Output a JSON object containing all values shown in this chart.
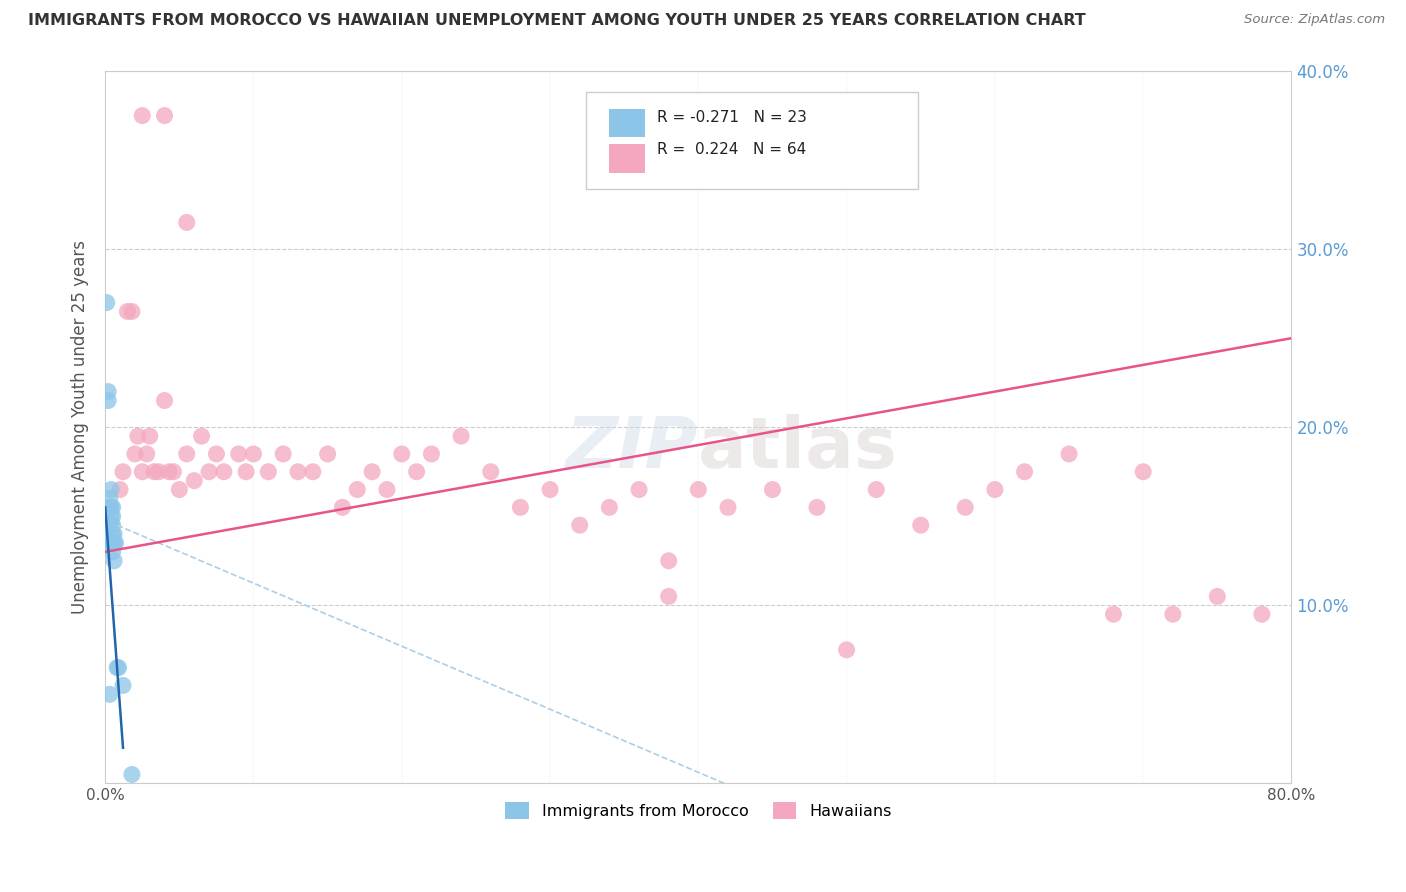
{
  "title": "IMMIGRANTS FROM MOROCCO VS HAWAIIAN UNEMPLOYMENT AMONG YOUTH UNDER 25 YEARS CORRELATION CHART",
  "source": "Source: ZipAtlas.com",
  "ylabel": "Unemployment Among Youth under 25 years",
  "xlim": [
    0,
    0.8
  ],
  "ylim": [
    0,
    0.4
  ],
  "yticks": [
    0.0,
    0.1,
    0.2,
    0.3,
    0.4
  ],
  "xticks": [
    0.0,
    0.8
  ],
  "ytick_labels_right": [
    "",
    "10.0%",
    "20.0%",
    "30.0%",
    "40.0%"
  ],
  "background_color": "#ffffff",
  "blue_color": "#8cc5e8",
  "pink_color": "#f4a7be",
  "blue_line_color": "#2166ac",
  "pink_line_color": "#e8538a",
  "blue_dashed_color": "#aacfe8",
  "grid_color": "#cccccc",
  "title_color": "#333333",
  "right_label_color": "#5b9bd5",
  "morocco_x": [
    0.001,
    0.002,
    0.002,
    0.003,
    0.003,
    0.003,
    0.004,
    0.004,
    0.004,
    0.004,
    0.004,
    0.005,
    0.005,
    0.005,
    0.005,
    0.005,
    0.005,
    0.006,
    0.006,
    0.006,
    0.007,
    0.008,
    0.009,
    0.012,
    0.018,
    0.003
  ],
  "morocco_y": [
    0.27,
    0.215,
    0.22,
    0.145,
    0.155,
    0.16,
    0.135,
    0.145,
    0.15,
    0.155,
    0.165,
    0.13,
    0.135,
    0.14,
    0.145,
    0.15,
    0.155,
    0.125,
    0.135,
    0.14,
    0.135,
    0.065,
    0.065,
    0.055,
    0.005,
    0.05
  ],
  "hawaii_x": [
    0.01,
    0.012,
    0.015,
    0.018,
    0.02,
    0.022,
    0.025,
    0.028,
    0.03,
    0.033,
    0.036,
    0.04,
    0.043,
    0.046,
    0.05,
    0.055,
    0.06,
    0.065,
    0.07,
    0.075,
    0.08,
    0.09,
    0.095,
    0.1,
    0.11,
    0.12,
    0.13,
    0.14,
    0.15,
    0.16,
    0.17,
    0.18,
    0.19,
    0.2,
    0.21,
    0.22,
    0.24,
    0.26,
    0.28,
    0.3,
    0.32,
    0.34,
    0.36,
    0.38,
    0.4,
    0.42,
    0.45,
    0.48,
    0.5,
    0.52,
    0.55,
    0.58,
    0.6,
    0.62,
    0.65,
    0.68,
    0.7,
    0.72,
    0.75,
    0.78,
    0.025,
    0.04,
    0.055,
    0.38
  ],
  "hawaii_y": [
    0.165,
    0.175,
    0.265,
    0.265,
    0.185,
    0.195,
    0.175,
    0.185,
    0.195,
    0.175,
    0.175,
    0.215,
    0.175,
    0.175,
    0.165,
    0.185,
    0.17,
    0.195,
    0.175,
    0.185,
    0.175,
    0.185,
    0.175,
    0.185,
    0.175,
    0.185,
    0.175,
    0.175,
    0.185,
    0.155,
    0.165,
    0.175,
    0.165,
    0.185,
    0.175,
    0.185,
    0.195,
    0.175,
    0.155,
    0.165,
    0.145,
    0.155,
    0.165,
    0.125,
    0.165,
    0.155,
    0.165,
    0.155,
    0.075,
    0.165,
    0.145,
    0.155,
    0.165,
    0.175,
    0.185,
    0.095,
    0.175,
    0.095,
    0.105,
    0.095,
    0.375,
    0.375,
    0.315,
    0.105
  ]
}
